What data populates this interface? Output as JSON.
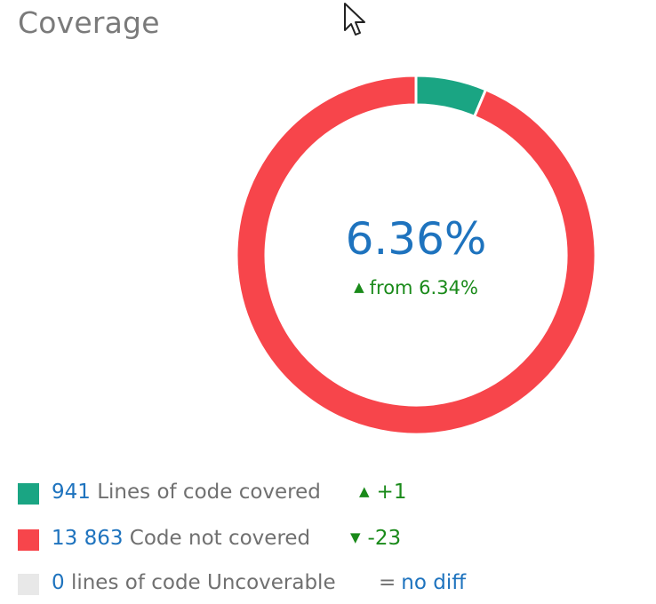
{
  "title": "Coverage",
  "colors": {
    "covered": "#1aa583",
    "not_covered": "#f7454b",
    "uncoverable": "#e8e8e8",
    "accent": "#1e73be",
    "positive": "#1a8a1a"
  },
  "center": {
    "value": "6.36%",
    "trend_icon": "triangle-up-icon",
    "from_text": "from 6.34%"
  },
  "legend": [
    {
      "count": "941",
      "label": "Lines of code covered",
      "delta": "+1",
      "delta_icon": "triangle-up-icon"
    },
    {
      "count": "13 863",
      "label": "Code not covered",
      "delta": "-23",
      "delta_icon": "triangle-down-icon"
    },
    {
      "count": "0",
      "label": "lines of code Uncoverable",
      "delta_prefix": "=",
      "delta": "no diff"
    }
  ],
  "chart_data": {
    "type": "pie",
    "style": "donut",
    "categories": [
      "Lines of code covered",
      "Code not covered",
      "lines of code Uncoverable"
    ],
    "values": [
      941,
      13863,
      0
    ],
    "center_label": "6.36%",
    "center_sublabel": "from 6.34%"
  }
}
